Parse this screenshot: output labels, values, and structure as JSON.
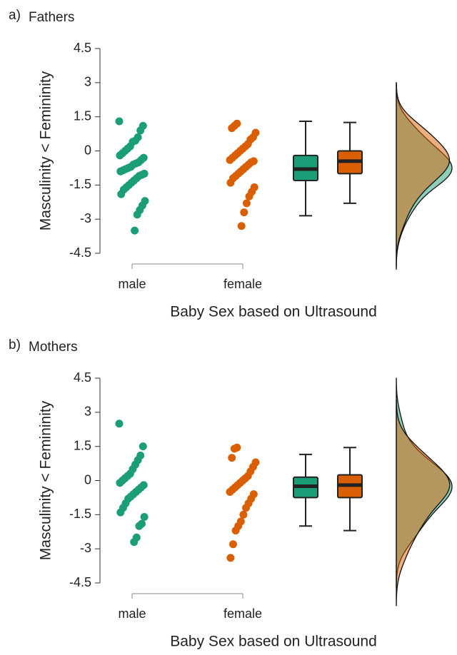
{
  "chart_data": [
    {
      "type": "raincloud",
      "label": "a)",
      "title": "Fathers",
      "ylabel": "Masculinity < Femininity",
      "xlabel": "Baby Sex based on Ultrasound",
      "categories": [
        "male",
        "female"
      ],
      "ylim": [
        -4.5,
        4.5
      ],
      "yticks": [
        -4.5,
        -3,
        -1.5,
        0,
        1.5,
        3,
        4.5
      ],
      "groups": [
        {
          "color": "#1b9e77",
          "values": [
            1.3,
            1.1,
            0.9,
            0.6,
            0.45,
            0.4,
            0.2,
            0.1,
            0,
            -0.1,
            -0.2,
            -0.3,
            -0.4,
            -0.5,
            -0.55,
            -0.6,
            -0.7,
            -0.75,
            -0.8,
            -0.85,
            -0.9,
            -1.0,
            -1.05,
            -1.1,
            -1.2,
            -1.3,
            -1.4,
            -1.5,
            -1.6,
            -1.7,
            -1.9,
            -2.2,
            -2.4,
            -2.6,
            -2.8,
            -3.5
          ],
          "box": {
            "min": -2.85,
            "q1": -1.3,
            "median": -0.8,
            "q3": -0.2,
            "max": 1.3
          }
        },
        {
          "color": "#d95f02",
          "values": [
            1.2,
            1.1,
            1.0,
            0.8,
            0.6,
            0.5,
            0.3,
            0.2,
            0.1,
            0,
            -0.1,
            -0.2,
            -0.3,
            -0.4,
            -0.45,
            -0.5,
            -0.6,
            -0.7,
            -0.8,
            -0.9,
            -1.0,
            -1.1,
            -1.2,
            -1.4,
            -1.6,
            -1.8,
            -2.0,
            -2.3,
            -2.7,
            -3.3
          ],
          "box": {
            "min": -2.3,
            "q1": -1.0,
            "median": -0.45,
            "q3": 0.0,
            "max": 1.25
          }
        }
      ]
    },
    {
      "type": "raincloud",
      "label": "b)",
      "title": "Mothers",
      "ylabel": "Masculinity < Femininity",
      "xlabel": "Baby Sex based on Ultrasound",
      "categories": [
        "male",
        "female"
      ],
      "ylim": [
        -4.5,
        4.5
      ],
      "yticks": [
        -4.5,
        -3,
        -1.5,
        0,
        1.5,
        3,
        4.5
      ],
      "groups": [
        {
          "color": "#1b9e77",
          "values": [
            2.5,
            1.5,
            1.1,
            0.9,
            0.7,
            0.5,
            0.3,
            0.2,
            0.1,
            0,
            -0.1,
            -0.2,
            -0.3,
            -0.4,
            -0.5,
            -0.6,
            -0.7,
            -0.8,
            -1.0,
            -1.2,
            -1.4,
            -1.6,
            -1.9,
            -2.0,
            -2.5,
            -2.7
          ],
          "box": {
            "min": -2.0,
            "q1": -0.75,
            "median": -0.25,
            "q3": 0.15,
            "max": 1.15
          }
        },
        {
          "color": "#d95f02",
          "values": [
            1.45,
            1.4,
            1.0,
            0.8,
            0.6,
            0.4,
            0.2,
            0.1,
            0,
            -0.1,
            -0.2,
            -0.3,
            -0.4,
            -0.5,
            -0.6,
            -0.8,
            -1.0,
            -1.2,
            -1.5,
            -1.8,
            -2.0,
            -2.2,
            -2.8,
            -3.4
          ],
          "box": {
            "min": -2.2,
            "q1": -0.75,
            "median": -0.2,
            "q3": 0.25,
            "max": 1.45
          }
        }
      ]
    }
  ]
}
